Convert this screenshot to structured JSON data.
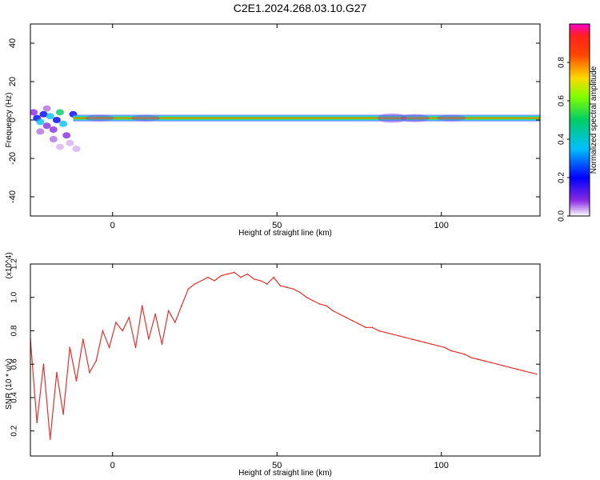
{
  "figure": {
    "title": "C2E1.2024.268.03.10.G27"
  },
  "chart_data": [
    {
      "type": "heatmap",
      "title": "C2E1.2024.268.03.10.G27",
      "xlabel": "Height of straight line (km)",
      "ylabel": "Frequency (Hz)",
      "xlim": [
        -25,
        130
      ],
      "ylim": [
        -50,
        50
      ],
      "x_ticks": [
        0,
        50,
        100
      ],
      "y_ticks": [
        -40,
        -20,
        0,
        20,
        40
      ],
      "colorbar": {
        "label": "Normalized spectral amplitude",
        "range": [
          0,
          1
        ],
        "ticks": [
          0.0,
          0.2,
          0.4,
          0.6,
          0.8
        ],
        "colormap": "rainbow (white/violet low to magenta high)"
      },
      "dominant_band": {
        "description": "Strong narrow band near 0-2 Hz across full height range; broadband scatter at heights below -10 km",
        "center_frequency_hz": 1,
        "bandwidth_hz": 4
      },
      "colors": {
        "low": "#8a2be2",
        "mid": "#00cc66",
        "high": "#ff2020"
      }
    },
    {
      "type": "line",
      "xlabel": "Height of straight line (km)",
      "ylabel": "SNR (10 * v/v)",
      "y_scale_label": "(x10^4)",
      "xlim": [
        -25,
        130
      ],
      "ylim": [
        0.05,
        1.2
      ],
      "x_ticks": [
        0,
        50,
        100
      ],
      "y_ticks": [
        0.2,
        0.4,
        0.6,
        0.8,
        1.0,
        1.2
      ],
      "series": [
        {
          "color": "#e83030",
          "x": [
            -25,
            -23,
            -21,
            -19,
            -17,
            -15,
            -13,
            -11,
            -9,
            -7,
            -5,
            -3,
            -1,
            1,
            3,
            5,
            7,
            9,
            11,
            13,
            15,
            17,
            19,
            21,
            23,
            25,
            27,
            29,
            31,
            33,
            35,
            37,
            39,
            41,
            43,
            45,
            47,
            49,
            51,
            53,
            55,
            57,
            59,
            61,
            63,
            65,
            67,
            69,
            71,
            73,
            75,
            77,
            79,
            81,
            83,
            85,
            87,
            89,
            91,
            93,
            95,
            97,
            99,
            101,
            103,
            105,
            107,
            109,
            111,
            113,
            115,
            117,
            119,
            121,
            123,
            125,
            127,
            129
          ],
          "values": [
            0.75,
            0.25,
            0.6,
            0.15,
            0.55,
            0.3,
            0.7,
            0.5,
            0.75,
            0.55,
            0.62,
            0.8,
            0.7,
            0.85,
            0.8,
            0.88,
            0.7,
            0.95,
            0.75,
            0.9,
            0.72,
            0.92,
            0.85,
            0.95,
            1.05,
            1.08,
            1.1,
            1.12,
            1.1,
            1.13,
            1.14,
            1.15,
            1.12,
            1.14,
            1.11,
            1.1,
            1.08,
            1.12,
            1.07,
            1.06,
            1.05,
            1.03,
            1.0,
            0.98,
            0.96,
            0.95,
            0.92,
            0.9,
            0.88,
            0.86,
            0.84,
            0.82,
            0.82,
            0.8,
            0.79,
            0.78,
            0.77,
            0.76,
            0.75,
            0.74,
            0.73,
            0.72,
            0.71,
            0.7,
            0.68,
            0.67,
            0.66,
            0.64,
            0.63,
            0.62,
            0.61,
            0.6,
            0.59,
            0.58,
            0.57,
            0.56,
            0.55,
            0.54
          ]
        }
      ]
    }
  ]
}
